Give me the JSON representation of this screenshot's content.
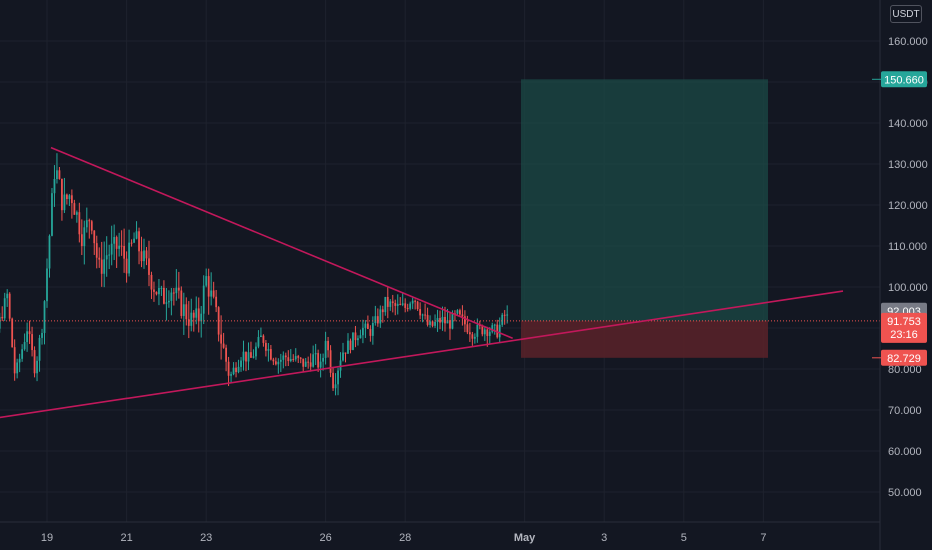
{
  "currency_label": "USDT",
  "colors": {
    "background": "#131722",
    "grid": "#1e222d",
    "up_candle": "#26a69a",
    "down_candle": "#ef5350",
    "trendline": "#c2185b",
    "profit_zone": "#1b4a46",
    "loss_zone": "#5a2229",
    "target_badge": "#26a69a",
    "stop_badge": "#ef5350",
    "price_badge": "#ef5350",
    "last_price_badge": "#787b86"
  },
  "chart_data": {
    "type": "candlestick",
    "y_ticks": [
      "160.000",
      "150.000",
      "140.000",
      "130.000",
      "120.000",
      "110.000",
      "100.000",
      "90.000",
      "80.000",
      "70.000",
      "60.000",
      "50.000"
    ],
    "x_ticks": [
      "19",
      "21",
      "23",
      "26",
      "28",
      "May",
      "3",
      "5",
      "7"
    ],
    "price_close_path": [
      [
        17.7,
        88
      ],
      [
        18.0,
        98
      ],
      [
        18.2,
        78
      ],
      [
        18.5,
        90
      ],
      [
        18.7,
        80
      ],
      [
        18.9,
        92
      ],
      [
        19.2,
        130
      ],
      [
        19.4,
        120
      ],
      [
        19.6,
        123
      ],
      [
        19.9,
        112
      ],
      [
        20.1,
        118
      ],
      [
        20.3,
        104
      ],
      [
        20.5,
        108
      ],
      [
        20.8,
        110
      ],
      [
        21.0,
        106
      ],
      [
        21.2,
        112
      ],
      [
        21.5,
        105
      ],
      [
        21.7,
        100
      ],
      [
        21.9,
        97
      ],
      [
        22.1,
        100
      ],
      [
        22.4,
        95
      ],
      [
        22.6,
        92
      ],
      [
        22.8,
        92
      ],
      [
        23.0,
        102
      ],
      [
        23.2,
        95
      ],
      [
        23.4,
        86
      ],
      [
        23.6,
        78
      ],
      [
        23.9,
        84
      ],
      [
        24.1,
        82
      ],
      [
        24.4,
        88
      ],
      [
        24.6,
        84
      ],
      [
        24.8,
        82
      ],
      [
        25.0,
        83
      ],
      [
        25.3,
        82
      ],
      [
        25.5,
        81
      ],
      [
        25.7,
        83
      ],
      [
        25.9,
        80
      ],
      [
        26.0,
        88
      ],
      [
        26.2,
        76
      ],
      [
        26.4,
        84
      ],
      [
        26.6,
        86
      ],
      [
        26.9,
        90
      ],
      [
        27.1,
        89
      ],
      [
        27.3,
        92
      ],
      [
        27.5,
        96
      ],
      [
        27.8,
        95
      ],
      [
        28.0,
        95
      ],
      [
        28.2,
        98
      ],
      [
        28.4,
        94
      ],
      [
        28.6,
        90
      ],
      [
        28.9,
        92
      ],
      [
        29.1,
        91
      ],
      [
        29.3,
        93
      ],
      [
        29.5,
        91
      ],
      [
        29.7,
        89
      ],
      [
        30.0,
        90
      ],
      [
        30.3,
        89
      ],
      [
        30.5,
        93
      ],
      [
        30.6,
        92
      ]
    ],
    "last_price": "92.003",
    "current_price": "91.753",
    "countdown": "23:16",
    "target_price": "150.660",
    "stop_price": "82.729",
    "position": {
      "entry": 91.753,
      "target": 150.66,
      "stop": 82.729,
      "start": "Apr 30",
      "end": "May 6"
    },
    "trendlines": [
      {
        "name": "descending",
        "from": {
          "x": 19.1,
          "y": 134
        },
        "to": {
          "x": 30.7,
          "y": 87.5
        }
      },
      {
        "name": "ascending",
        "from": {
          "x": 17.0,
          "y": 67
        },
        "to": {
          "x": 39.0,
          "y": 99
        }
      }
    ]
  }
}
